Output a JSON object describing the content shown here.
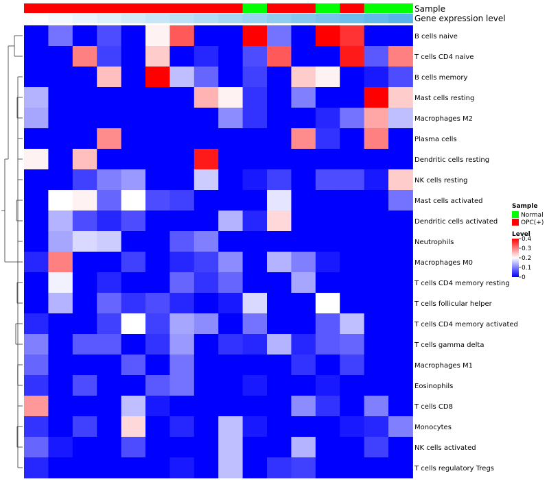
{
  "chart_data": {
    "type": "heatmap",
    "annotation_rows": [
      "Sample",
      "Gene expression level"
    ],
    "sample_groups": [
      "OPC",
      "OPC",
      "OPC",
      "OPC",
      "OPC",
      "OPC",
      "OPC",
      "OPC",
      "OPC",
      "Normal",
      "OPC",
      "OPC",
      "Normal",
      "OPC",
      "Normal",
      "Normal"
    ],
    "gene_expression": [
      0.0,
      0.07,
      0.13,
      0.2,
      0.27,
      0.33,
      0.4,
      0.47,
      0.53,
      0.6,
      0.67,
      0.73,
      0.8,
      0.87,
      0.93,
      1.0
    ],
    "rows": [
      "B cells naive",
      "T cells CD4 naive",
      "B cells memory",
      "Mast cells resting",
      "Macrophages M2",
      "Plasma cells",
      "Dendritic cells resting",
      "NK cells resting",
      "Mast cells activated",
      "Dendritic cells activated",
      "Neutrophils",
      "Macrophages M0",
      "T cells CD4 memory resting",
      "T cells follicular helper",
      "T cells CD4 memory activated",
      "T cells gamma delta",
      "Macrophages M1",
      "Eosinophils",
      "T cells CD8",
      "Monocytes",
      "NK cells activated",
      "T cells regulatory  Tregs"
    ],
    "values": [
      [
        0,
        0.09,
        0,
        0.06,
        0,
        0.21,
        0.33,
        0,
        0,
        0.4,
        0.09,
        0,
        0.4,
        0.36,
        0,
        0
      ],
      [
        0,
        0,
        0.3,
        0.05,
        0,
        0.24,
        0,
        0.03,
        0,
        0.06,
        0.33,
        0,
        0,
        0.38,
        0.07,
        0.3
      ],
      [
        0,
        0,
        0,
        0.25,
        0,
        0.4,
        0.15,
        0.08,
        0,
        0.05,
        0,
        0.24,
        0.21,
        0,
        0.02,
        0.06
      ],
      [
        0.14,
        0,
        0,
        0,
        0,
        0,
        0,
        0.26,
        0.21,
        0.04,
        0,
        0.1,
        0,
        0,
        0.4,
        0.24
      ],
      [
        0.13,
        0,
        0,
        0,
        0,
        0,
        0,
        0,
        0.11,
        0.04,
        0,
        0,
        0.03,
        0.09,
        0.27,
        0.15
      ],
      [
        0,
        0,
        0,
        0.29,
        0,
        0,
        0,
        0,
        0,
        0,
        0,
        0.29,
        0.04,
        0,
        0.3,
        0
      ],
      [
        0.21,
        0,
        0.25,
        0,
        0,
        0,
        0,
        0.38,
        0,
        0,
        0,
        0,
        0,
        0,
        0,
        0
      ],
      [
        0,
        0,
        0.05,
        0.1,
        0.12,
        0,
        0,
        0.16,
        0,
        0.02,
        0.05,
        0,
        0.06,
        0.06,
        0.02,
        0.24
      ],
      [
        0,
        0.2,
        0.21,
        0.08,
        0.2,
        0.06,
        0.05,
        0,
        0,
        0,
        0.18,
        0,
        0,
        0,
        0,
        0.09
      ],
      [
        0,
        0.14,
        0.06,
        0.03,
        0.06,
        0,
        0,
        0,
        0.14,
        0.03,
        0.23,
        0,
        0,
        0,
        0,
        0
      ],
      [
        0,
        0.13,
        0.17,
        0.16,
        0,
        0,
        0.07,
        0.1,
        0,
        0,
        0,
        0,
        0,
        0,
        0,
        0
      ],
      [
        0.03,
        0.3,
        0,
        0,
        0.05,
        0,
        0.03,
        0.05,
        0.11,
        0,
        0.14,
        0.1,
        0.02,
        0,
        0,
        0
      ],
      [
        0,
        0.19,
        0,
        0.03,
        0,
        0,
        0.08,
        0.04,
        0.08,
        0,
        0,
        0.13,
        0,
        0,
        0,
        0
      ],
      [
        0,
        0.14,
        0,
        0.08,
        0.04,
        0.06,
        0.03,
        0,
        0.02,
        0.17,
        0,
        0,
        0.2,
        0,
        0,
        0
      ],
      [
        0.03,
        0,
        0,
        0.05,
        0.2,
        0.05,
        0.13,
        0.11,
        0,
        0.09,
        0,
        0,
        0.07,
        0.15,
        0,
        0
      ],
      [
        0.1,
        0,
        0.07,
        0.07,
        0,
        0.04,
        0.12,
        0,
        0.04,
        0.03,
        0.14,
        0.03,
        0.07,
        0.08,
        0,
        0
      ],
      [
        0.08,
        0,
        0,
        0,
        0.07,
        0,
        0.09,
        0,
        0,
        0,
        0,
        0.04,
        0,
        0.05,
        0,
        0
      ],
      [
        0.04,
        0,
        0.06,
        0,
        0,
        0.07,
        0.09,
        0,
        0,
        0.02,
        0,
        0,
        0.02,
        0,
        0,
        0
      ],
      [
        0.28,
        0,
        0,
        0,
        0.15,
        0.02,
        0,
        0,
        0,
        0,
        0,
        0.11,
        0.04,
        0,
        0.1,
        0
      ],
      [
        0.04,
        0,
        0.05,
        0,
        0.23,
        0,
        0.03,
        0,
        0.15,
        0.02,
        0,
        0,
        0,
        0.02,
        0.03,
        0.1
      ],
      [
        0.08,
        0.02,
        0,
        0,
        0.06,
        0,
        0,
        0,
        0.15,
        0,
        0,
        0.14,
        0,
        0,
        0.05,
        0
      ],
      [
        0.03,
        0,
        0,
        0,
        0,
        0,
        0.02,
        0,
        0.15,
        0,
        0.04,
        0.05,
        0,
        0,
        0,
        0
      ]
    ],
    "row_dendrogram": [
      {
        "a": "B cells naive",
        "b": "T cells CD4 naive",
        "h": 0.3
      },
      {
        "a": "T cells CD4 memory activated",
        "b": "T cells gamma delta",
        "h": 0.25
      },
      {
        "a": "Mast cells activated",
        "b": "Dendritic cells activated",
        "h": 0.22
      },
      {
        "a": "Mast cells resting",
        "b": "Macrophages M2",
        "h": 0.2
      },
      {
        "a": "T cells CD4 memory resting",
        "b": "T cells follicular helper",
        "h": 0.2
      },
      {
        "a": "Macrophages M1",
        "b": "Eosinophils",
        "h": 0.18
      },
      {
        "a": "Monocytes",
        "b": "NK cells activated",
        "h": 0.2
      }
    ],
    "legend": {
      "sample": {
        "title": "Sample",
        "entries": [
          {
            "label": "Normal",
            "color": "#00ff00"
          },
          {
            "label": "OPC(+)",
            "color": "#ff0000"
          }
        ]
      },
      "level": {
        "title": "Level",
        "ticks": [
          "0.4",
          "0.3",
          "0.2",
          "0.1",
          "0"
        ],
        "tick_values": [
          0.4,
          0.3,
          0.2,
          0.1,
          0
        ]
      }
    },
    "colors": {
      "low": "#0000ff",
      "mid": "#ffffff",
      "high": "#ff0000",
      "gene_low": "#ffffff",
      "gene_high": "#56b4e9"
    },
    "range": [
      0,
      0.4
    ],
    "legend_placement": "right"
  }
}
